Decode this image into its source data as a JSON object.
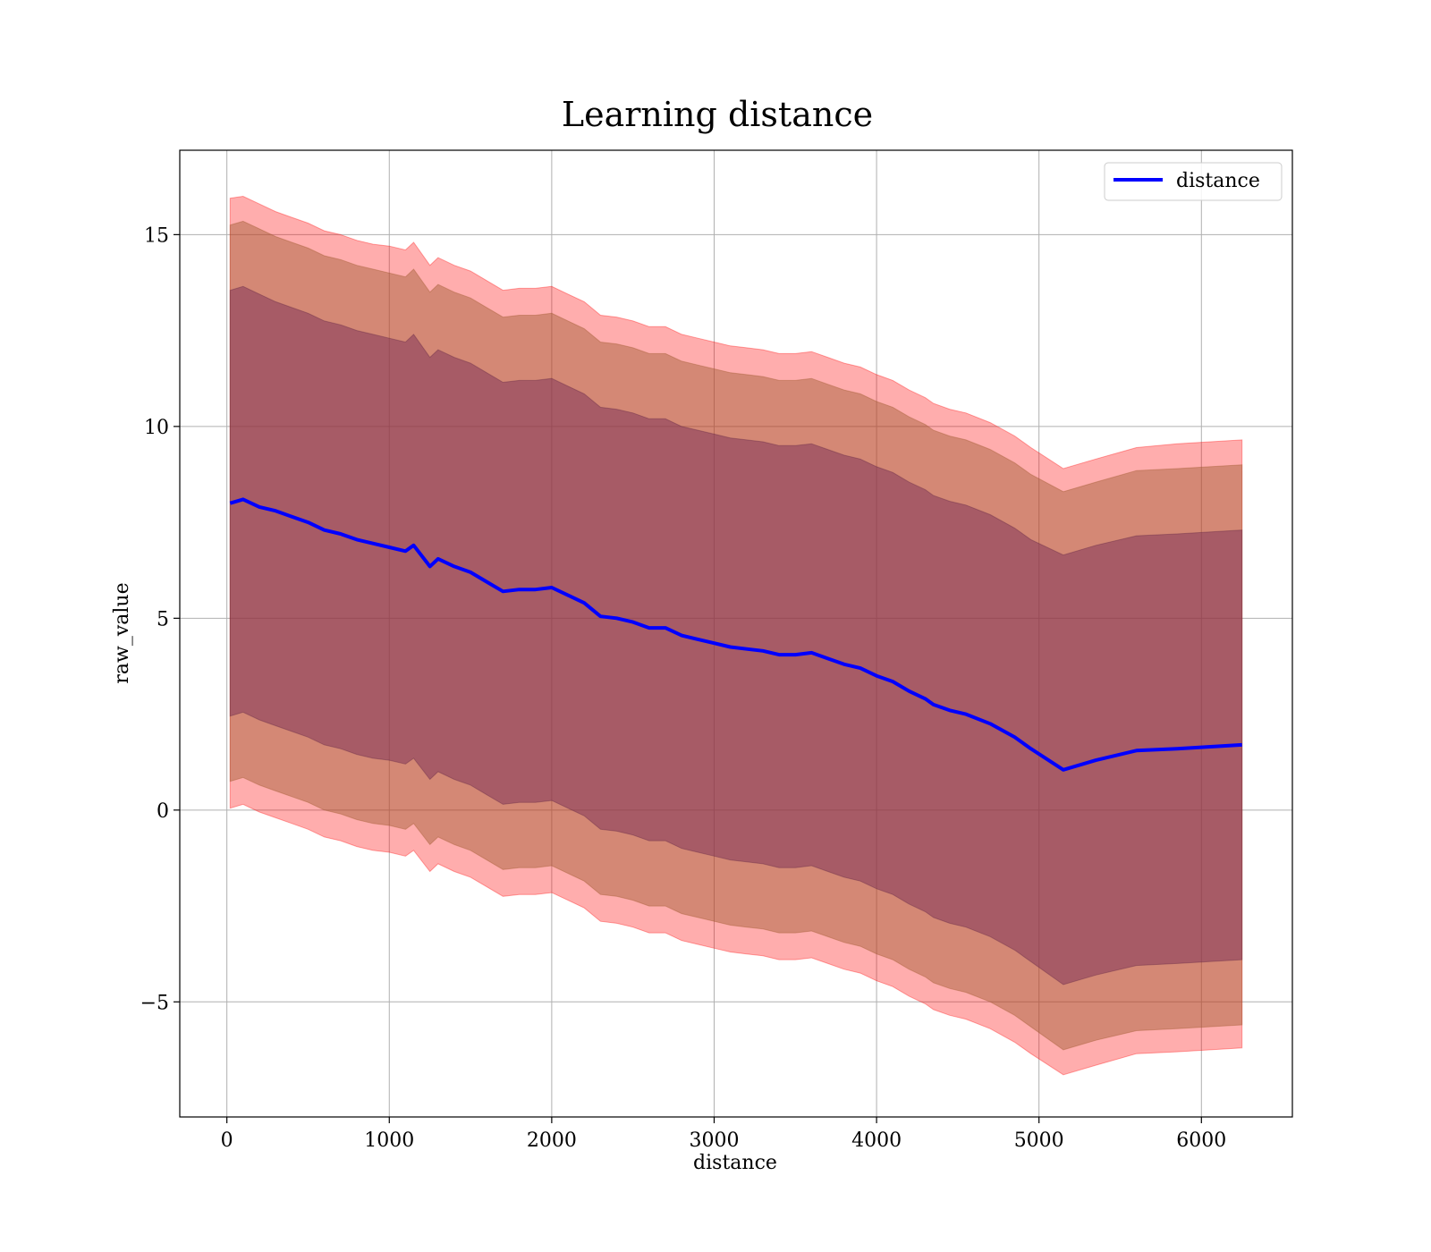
{
  "chart_data": {
    "type": "line",
    "title": "Learning distance",
    "xlabel": "distance",
    "ylabel": "raw_value",
    "xlim": [
      -290,
      6560
    ],
    "ylim": [
      -8.0,
      17.2
    ],
    "xticks": [
      0,
      1000,
      2000,
      3000,
      4000,
      5000,
      6000
    ],
    "xtick_labels": [
      "0",
      "1000",
      "2000",
      "3000",
      "4000",
      "5000",
      "6000"
    ],
    "yticks": [
      -5,
      0,
      5,
      10,
      15
    ],
    "ytick_labels": [
      "−5",
      "0",
      "5",
      "10",
      "15"
    ],
    "grid": true,
    "legend": {
      "position": "top-right",
      "entries": [
        "distance"
      ]
    },
    "colors": {
      "line": "#0000ff",
      "band": "#ff0000",
      "band_inner": "#8b3a4a"
    },
    "x": [
      20,
      100,
      200,
      300,
      400,
      500,
      600,
      700,
      800,
      900,
      1000,
      1100,
      1150,
      1250,
      1300,
      1400,
      1500,
      1600,
      1700,
      1800,
      1900,
      2000,
      2100,
      2200,
      2300,
      2400,
      2500,
      2600,
      2700,
      2800,
      2900,
      3000,
      3100,
      3200,
      3300,
      3400,
      3500,
      3600,
      3700,
      3800,
      3900,
      4000,
      4100,
      4200,
      4300,
      4350,
      4450,
      4550,
      4700,
      4850,
      4950,
      5150,
      5350,
      5600,
      5850,
      6250
    ],
    "series": [
      {
        "name": "distance",
        "values": [
          8.0,
          8.1,
          7.9,
          7.8,
          7.65,
          7.5,
          7.3,
          7.2,
          7.05,
          6.95,
          6.85,
          6.75,
          6.9,
          6.35,
          6.55,
          6.35,
          6.2,
          5.95,
          5.7,
          5.75,
          5.75,
          5.8,
          5.6,
          5.4,
          5.05,
          5.0,
          4.9,
          4.75,
          4.75,
          4.55,
          4.45,
          4.35,
          4.25,
          4.2,
          4.15,
          4.05,
          4.05,
          4.1,
          3.95,
          3.8,
          3.7,
          3.5,
          3.35,
          3.1,
          2.9,
          2.75,
          2.6,
          2.5,
          2.25,
          1.9,
          1.6,
          1.05,
          1.3,
          1.55,
          1.6,
          1.7
        ]
      }
    ],
    "bands": [
      {
        "level": "outer",
        "upper": [
          15.95,
          16.0,
          15.8,
          15.6,
          15.45,
          15.3,
          15.1,
          15.0,
          14.85,
          14.75,
          14.7,
          14.6,
          14.8,
          14.2,
          14.4,
          14.2,
          14.05,
          13.8,
          13.55,
          13.6,
          13.6,
          13.65,
          13.45,
          13.25,
          12.9,
          12.85,
          12.75,
          12.6,
          12.6,
          12.4,
          12.3,
          12.2,
          12.1,
          12.05,
          12.0,
          11.9,
          11.9,
          11.95,
          11.8,
          11.65,
          11.55,
          11.35,
          11.2,
          10.95,
          10.75,
          10.6,
          10.45,
          10.35,
          10.1,
          9.75,
          9.45,
          8.9,
          9.15,
          9.45,
          9.55,
          9.65
        ],
        "lower": [
          0.05,
          0.15,
          -0.05,
          -0.2,
          -0.35,
          -0.5,
          -0.7,
          -0.8,
          -0.95,
          -1.05,
          -1.1,
          -1.2,
          -1.05,
          -1.6,
          -1.4,
          -1.6,
          -1.75,
          -2.0,
          -2.25,
          -2.2,
          -2.2,
          -2.15,
          -2.35,
          -2.55,
          -2.9,
          -2.95,
          -3.05,
          -3.2,
          -3.2,
          -3.4,
          -3.5,
          -3.6,
          -3.7,
          -3.75,
          -3.8,
          -3.9,
          -3.9,
          -3.85,
          -4.0,
          -4.15,
          -4.25,
          -4.45,
          -4.6,
          -4.85,
          -5.05,
          -5.2,
          -5.35,
          -5.45,
          -5.7,
          -6.05,
          -6.35,
          -6.9,
          -6.65,
          -6.35,
          -6.3,
          -6.2
        ]
      },
      {
        "level": "middle",
        "upper": [
          15.25,
          15.35,
          15.15,
          14.95,
          14.8,
          14.65,
          14.45,
          14.35,
          14.2,
          14.1,
          14.0,
          13.9,
          14.1,
          13.5,
          13.7,
          13.5,
          13.35,
          13.1,
          12.85,
          12.9,
          12.9,
          12.95,
          12.75,
          12.55,
          12.2,
          12.15,
          12.05,
          11.9,
          11.9,
          11.7,
          11.6,
          11.5,
          11.4,
          11.35,
          11.3,
          11.2,
          11.2,
          11.25,
          11.1,
          10.95,
          10.85,
          10.65,
          10.5,
          10.25,
          10.05,
          9.9,
          9.75,
          9.65,
          9.4,
          9.05,
          8.75,
          8.3,
          8.55,
          8.85,
          8.9,
          9.0
        ],
        "lower": [
          0.75,
          0.85,
          0.65,
          0.5,
          0.35,
          0.2,
          0.0,
          -0.1,
          -0.25,
          -0.35,
          -0.4,
          -0.5,
          -0.35,
          -0.9,
          -0.7,
          -0.9,
          -1.05,
          -1.3,
          -1.55,
          -1.5,
          -1.5,
          -1.45,
          -1.65,
          -1.85,
          -2.2,
          -2.25,
          -2.35,
          -2.5,
          -2.5,
          -2.7,
          -2.8,
          -2.9,
          -3.0,
          -3.05,
          -3.1,
          -3.2,
          -3.2,
          -3.15,
          -3.3,
          -3.45,
          -3.55,
          -3.75,
          -3.9,
          -4.15,
          -4.35,
          -4.5,
          -4.65,
          -4.75,
          -5.0,
          -5.35,
          -5.65,
          -6.25,
          -6.0,
          -5.75,
          -5.7,
          -5.6
        ]
      },
      {
        "level": "inner",
        "upper": [
          13.55,
          13.65,
          13.45,
          13.25,
          13.1,
          12.95,
          12.75,
          12.65,
          12.5,
          12.4,
          12.3,
          12.2,
          12.4,
          11.8,
          12.0,
          11.8,
          11.65,
          11.4,
          11.15,
          11.2,
          11.2,
          11.25,
          11.05,
          10.85,
          10.5,
          10.45,
          10.35,
          10.2,
          10.2,
          10.0,
          9.9,
          9.8,
          9.7,
          9.65,
          9.6,
          9.5,
          9.5,
          9.55,
          9.4,
          9.25,
          9.15,
          8.95,
          8.8,
          8.55,
          8.35,
          8.2,
          8.05,
          7.95,
          7.7,
          7.35,
          7.05,
          6.65,
          6.9,
          7.15,
          7.2,
          7.3
        ],
        "lower": [
          2.45,
          2.55,
          2.35,
          2.2,
          2.05,
          1.9,
          1.7,
          1.6,
          1.45,
          1.35,
          1.3,
          1.2,
          1.35,
          0.8,
          1.0,
          0.8,
          0.65,
          0.4,
          0.15,
          0.2,
          0.2,
          0.25,
          0.05,
          -0.15,
          -0.5,
          -0.55,
          -0.65,
          -0.8,
          -0.8,
          -1.0,
          -1.1,
          -1.2,
          -1.3,
          -1.35,
          -1.4,
          -1.5,
          -1.5,
          -1.45,
          -1.6,
          -1.75,
          -1.85,
          -2.05,
          -2.2,
          -2.45,
          -2.65,
          -2.8,
          -2.95,
          -3.05,
          -3.3,
          -3.65,
          -3.95,
          -4.55,
          -4.3,
          -4.05,
          -4.0,
          -3.9
        ]
      }
    ]
  }
}
